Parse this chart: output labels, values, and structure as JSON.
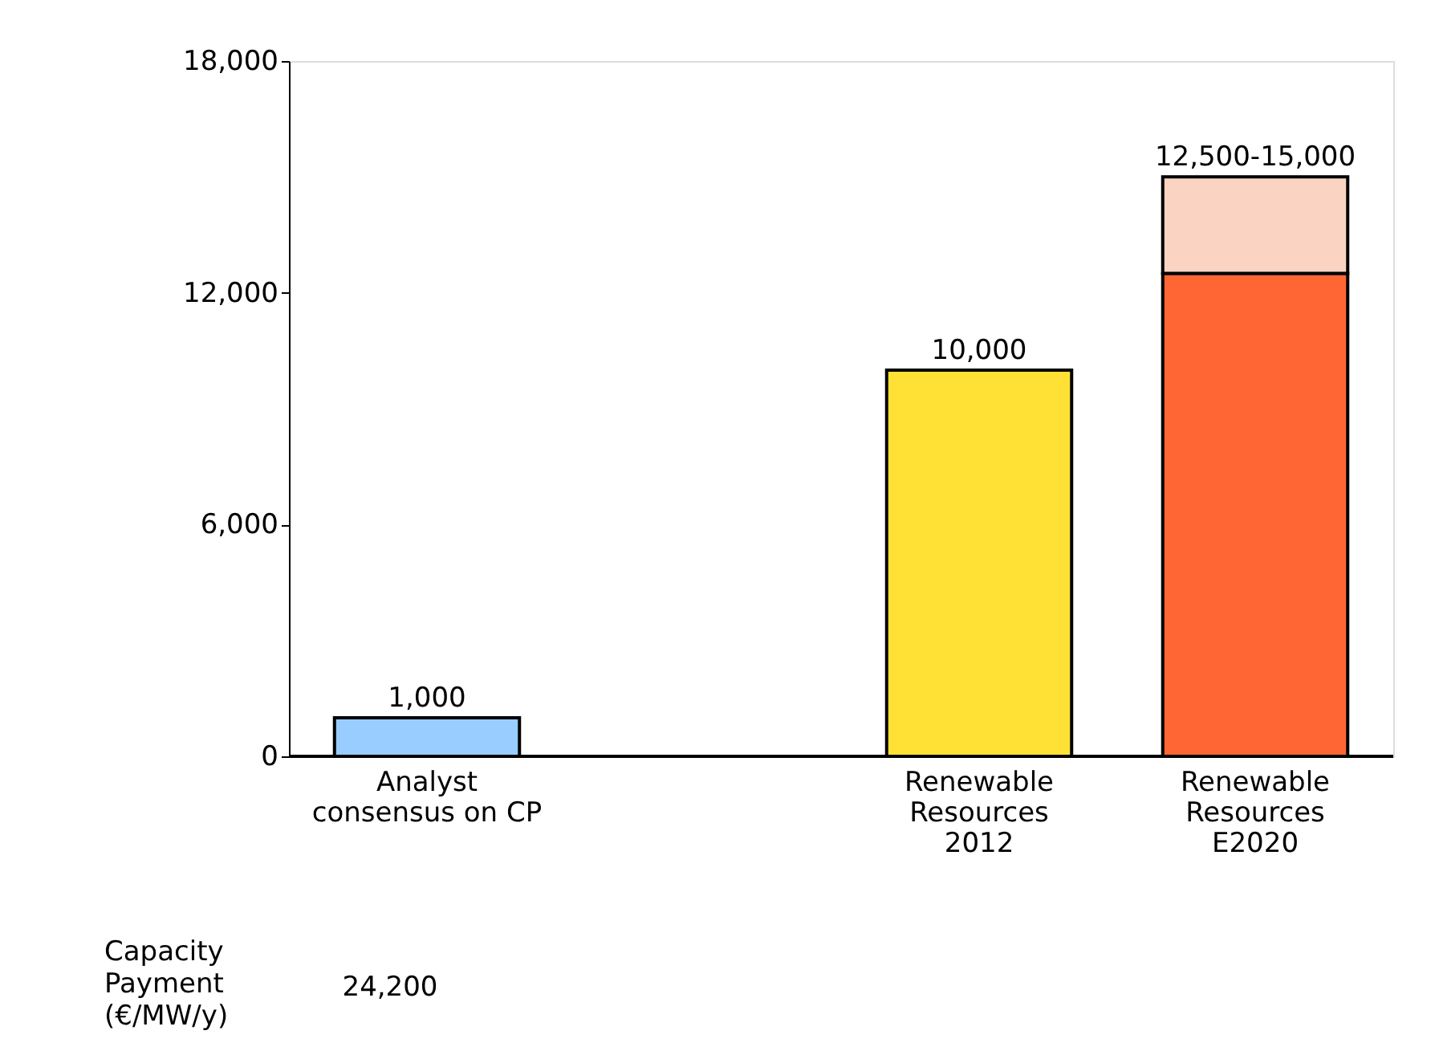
{
  "chart_data": {
    "type": "bar",
    "stacked": true,
    "categories": [
      "Analyst consensus on CP",
      null,
      "Renewable Resources 2012",
      "Renewable Resources E2020"
    ],
    "series": [
      {
        "colors": [
          "#99ccff",
          "#99ccff",
          "#ffe135",
          "#ff6633"
        ],
        "values": [
          1000,
          null,
          10000,
          12500
        ],
        "value_labels": [
          "1,000",
          null,
          "10,000",
          null
        ]
      },
      {
        "colors": [
          "#fbd3c3",
          "#fbd3c3",
          "#fbd3c3",
          "#fbd3c3"
        ],
        "values": [
          null,
          null,
          null,
          2500
        ],
        "value_labels": [
          null,
          null,
          null,
          "12,500-15,000"
        ]
      }
    ],
    "ylim": [
      0,
      18000
    ],
    "yticks": [
      0,
      {
        "value": 6000,
        "label": "6,000"
      },
      {
        "value": 12000,
        "label": "12,000"
      },
      {
        "value": 18000,
        "label": "18,000"
      }
    ],
    "grid": false,
    "annotations": [
      "Capacity Payment (€/MW/y)",
      "24,200"
    ]
  }
}
